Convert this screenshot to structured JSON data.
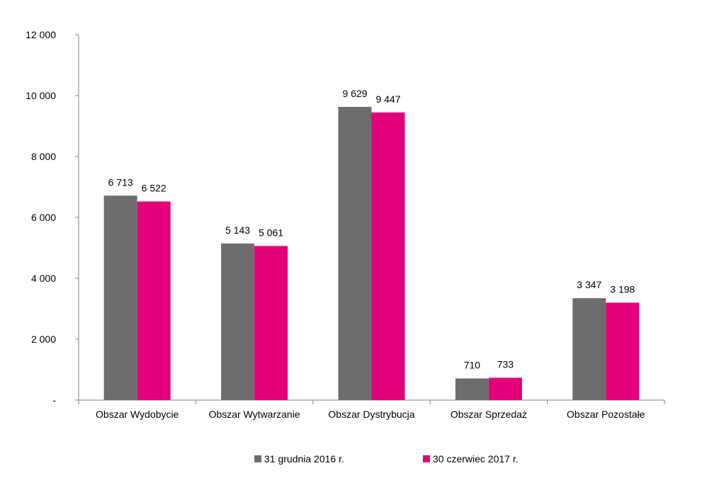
{
  "chart_data": {
    "type": "bar",
    "categories": [
      "Obszar Wydobycie",
      "Obszar Wytwarzanie",
      "Obszar Dystrybucja",
      "Obszar Sprzedaż",
      "Obszar Pozostałe"
    ],
    "series": [
      {
        "name": "31 grudnia 2016 r.",
        "color": "#6d6d6d",
        "values": [
          6713,
          5143,
          9629,
          710,
          3347
        ],
        "labels": [
          "6 713",
          "5 143",
          "9 629",
          "710",
          "3 347"
        ]
      },
      {
        "name": "30 czerwiec 2017 r.",
        "color": "#e2007a",
        "values": [
          6522,
          5061,
          9447,
          733,
          3198
        ],
        "labels": [
          "6 522",
          "5 061",
          "9 447",
          "733",
          "3 198"
        ]
      }
    ],
    "ylim": [
      0,
      12000
    ],
    "yticks": [
      0,
      2000,
      4000,
      6000,
      8000,
      10000,
      12000
    ],
    "ytick_labels": [
      "-",
      "2 000",
      "4 000",
      "6 000",
      "8 000",
      "10 000",
      "12 000"
    ],
    "legend_position": "bottom",
    "grid": false
  },
  "legend": {
    "series1_label": "31 grudnia 2016 r.",
    "series2_label": "30 czerwiec 2017 r."
  }
}
